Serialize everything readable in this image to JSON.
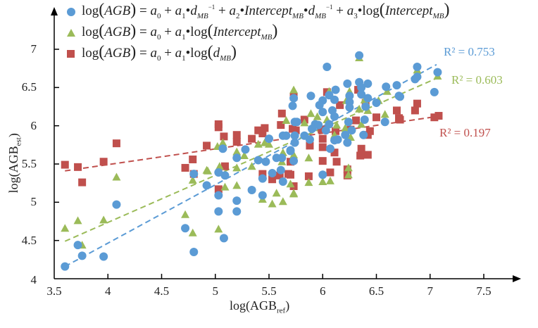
{
  "chart_data": {
    "type": "scatter",
    "xlabel": {
      "main": "log(AGB",
      "sub": "ref",
      "close": ")"
    },
    "ylabel": {
      "main": "log(AGB",
      "sub": "est",
      "close": ")"
    },
    "xlim": [
      3.5,
      7.5
    ],
    "ylim": [
      4,
      7
    ],
    "xticks": [
      "3.5",
      "4",
      "4.5",
      "5",
      "5.5",
      "6",
      "6.5",
      "7",
      "7.5"
    ],
    "yticks": [
      "4",
      "4.5",
      "5",
      "5.5",
      "6",
      "6.5",
      "7"
    ],
    "grid": false,
    "legend_position": "top-left",
    "series": [
      {
        "marker": "circle",
        "color": "#5b9bd5",
        "legend": [
          {
            "t": "log",
            "c": "n"
          },
          {
            "t": "(",
            "c": "big"
          },
          {
            "t": "AGB",
            "c": "i"
          },
          {
            "t": ")",
            "c": "big"
          },
          {
            "t": " = ",
            "c": "n"
          },
          {
            "t": "a",
            "c": "i"
          },
          {
            "t": "0",
            "c": "sub n"
          },
          {
            "t": " + ",
            "c": "n"
          },
          {
            "t": "a",
            "c": "i"
          },
          {
            "t": "1",
            "c": "sub n"
          },
          {
            "t": "•",
            "c": "n"
          },
          {
            "t": "d",
            "c": "i"
          },
          {
            "t": "MB",
            "c": "sub"
          },
          {
            "t": "−1",
            "c": "sup"
          },
          {
            "t": " + ",
            "c": "n"
          },
          {
            "t": "a",
            "c": "i"
          },
          {
            "t": "2",
            "c": "sub n"
          },
          {
            "t": "•",
            "c": "n"
          },
          {
            "t": "Intercept",
            "c": "i"
          },
          {
            "t": "MB",
            "c": "sub"
          },
          {
            "t": "•",
            "c": "n"
          },
          {
            "t": "d",
            "c": "i"
          },
          {
            "t": "MB",
            "c": "sub"
          },
          {
            "t": "−1",
            "c": "sup"
          },
          {
            "t": " + ",
            "c": "n"
          },
          {
            "t": "a",
            "c": "i"
          },
          {
            "t": "3",
            "c": "sub n"
          },
          {
            "t": "•log",
            "c": "n"
          },
          {
            "t": "(",
            "c": "big"
          },
          {
            "t": "Intercept",
            "c": "i"
          },
          {
            "t": "MB",
            "c": "sub"
          },
          {
            "t": ")",
            "c": "big"
          }
        ],
        "r2_label": "R² = 0.753",
        "trendline": [
          [
            3.6,
            4.16
          ],
          [
            7.06,
            6.8
          ]
        ],
        "points": [
          [
            3.6,
            4.16
          ],
          [
            3.72,
            4.44
          ],
          [
            3.76,
            4.3
          ],
          [
            3.96,
            4.29
          ],
          [
            4.08,
            4.97
          ],
          [
            4.72,
            4.66
          ],
          [
            4.8,
            4.35
          ],
          [
            4.8,
            5.37
          ],
          [
            4.92,
            5.22
          ],
          [
            5.07,
            5.7
          ],
          [
            5.28,
            5.69
          ],
          [
            5.2,
            5.58
          ],
          [
            5.4,
            5.55
          ],
          [
            5.47,
            5.53
          ],
          [
            5.5,
            5.83
          ],
          [
            5.03,
            5.39
          ],
          [
            5.09,
            5.35
          ],
          [
            5.03,
            5.09
          ],
          [
            5.2,
            5.02
          ],
          [
            5.03,
            4.88
          ],
          [
            5.2,
            4.88
          ],
          [
            5.34,
            5.16
          ],
          [
            5.44,
            5.09
          ],
          [
            5.44,
            5.31
          ],
          [
            5.53,
            5.38
          ],
          [
            5.61,
            5.42
          ],
          [
            5.63,
            5.27
          ],
          [
            5.08,
            4.53
          ],
          [
            5.57,
            5.58
          ],
          [
            5.62,
            5.58
          ],
          [
            5.7,
            5.68
          ],
          [
            5.73,
            5.54
          ],
          [
            5.63,
            5.87
          ],
          [
            5.66,
            5.87
          ],
          [
            5.74,
            6.05
          ],
          [
            6.34,
            6.92
          ],
          [
            6.04,
            6.77
          ],
          [
            6.23,
            6.55
          ],
          [
            6.34,
            6.57
          ],
          [
            6.42,
            6.55
          ],
          [
            6.59,
            6.51
          ],
          [
            6.69,
            6.53
          ],
          [
            6.36,
            6.5
          ],
          [
            6.12,
            6.47
          ],
          [
            5.89,
            6.39
          ],
          [
            6.06,
            6.4
          ],
          [
            6.11,
            6.34
          ],
          [
            5.73,
            6.36
          ],
          [
            5.72,
            6.26
          ],
          [
            6.0,
            6.33
          ],
          [
            5.97,
            6.27
          ],
          [
            6.25,
            6.39
          ],
          [
            6.25,
            6.31
          ],
          [
            6.25,
            6.24
          ],
          [
            6.36,
            6.41
          ],
          [
            6.42,
            6.36
          ],
          [
            6.5,
            6.3
          ],
          [
            6.71,
            6.39
          ],
          [
            6.4,
            6.25
          ],
          [
            6.0,
            6.18
          ],
          [
            6.09,
            6.2
          ],
          [
            6.11,
            6.12
          ],
          [
            5.76,
            6.05
          ],
          [
            6.39,
            6.08
          ],
          [
            6.58,
            6.05
          ],
          [
            5.93,
            6.02
          ],
          [
            5.96,
            6.01
          ],
          [
            6.24,
            6.05
          ],
          [
            6.06,
            6.02
          ],
          [
            6.0,
            5.36
          ],
          [
            6.07,
            5.7
          ],
          [
            6.11,
            5.81
          ],
          [
            6.14,
            5.82
          ],
          [
            6.23,
            5.78
          ],
          [
            6.21,
            5.88
          ],
          [
            6.27,
            5.94
          ],
          [
            6.38,
            5.88
          ],
          [
            5.74,
            5.87
          ],
          [
            5.83,
            5.87
          ],
          [
            5.88,
            5.82
          ],
          [
            5.7,
            5.67
          ],
          [
            5.74,
            5.78
          ],
          [
            5.9,
            5.96
          ],
          [
            6.03,
            5.94
          ],
          [
            6.88,
            6.77
          ],
          [
            7.07,
            6.7
          ],
          [
            6.88,
            6.64
          ],
          [
            6.86,
            6.61
          ],
          [
            6.72,
            6.38
          ],
          [
            7.04,
            6.44
          ]
        ]
      },
      {
        "marker": "triangle",
        "color": "#9bbb59",
        "legend": [
          {
            "t": "log",
            "c": "n"
          },
          {
            "t": "(",
            "c": "big"
          },
          {
            "t": "AGB",
            "c": "i"
          },
          {
            "t": ")",
            "c": "big"
          },
          {
            "t": " = ",
            "c": "n"
          },
          {
            "t": "a",
            "c": "i"
          },
          {
            "t": "0",
            "c": "sub n"
          },
          {
            "t": " + ",
            "c": "n"
          },
          {
            "t": "a",
            "c": "i"
          },
          {
            "t": "1",
            "c": "sub n"
          },
          {
            "t": "•log",
            "c": "n"
          },
          {
            "t": "(",
            "c": "big"
          },
          {
            "t": "Intercept",
            "c": "i"
          },
          {
            "t": "MB",
            "c": "sub"
          },
          {
            "t": ")",
            "c": "big"
          }
        ],
        "r2_label": "R² = 0.603",
        "trendline": [
          [
            3.6,
            4.49
          ],
          [
            7.06,
            6.62
          ]
        ],
        "points": [
          [
            3.6,
            4.66
          ],
          [
            3.72,
            4.76
          ],
          [
            3.76,
            4.44
          ],
          [
            3.96,
            4.77
          ],
          [
            4.08,
            5.33
          ],
          [
            4.72,
            4.84
          ],
          [
            4.79,
            4.6
          ],
          [
            4.79,
            5.29
          ],
          [
            4.92,
            5.42
          ],
          [
            5.02,
            5.73
          ],
          [
            5.07,
            5.78
          ],
          [
            5.2,
            5.66
          ],
          [
            5.27,
            5.61
          ],
          [
            5.4,
            5.76
          ],
          [
            5.46,
            5.78
          ],
          [
            5.5,
            5.76
          ],
          [
            5.04,
            5.47
          ],
          [
            4.93,
            5.41
          ],
          [
            5.2,
            5.45
          ],
          [
            5.34,
            5.47
          ],
          [
            5.09,
            5.2
          ],
          [
            5.2,
            5.22
          ],
          [
            5.03,
            4.65
          ],
          [
            5.44,
            5.04
          ],
          [
            5.53,
            4.98
          ],
          [
            5.63,
            5.01
          ],
          [
            5.57,
            5.12
          ],
          [
            5.66,
            6.07
          ],
          [
            5.63,
            5.65
          ],
          [
            5.62,
            5.53
          ],
          [
            5.7,
            5.24
          ],
          [
            5.73,
            5.12
          ],
          [
            6.34,
            6.89
          ],
          [
            5.73,
            6.47
          ],
          [
            6.06,
            6.45
          ],
          [
            6.25,
            6.45
          ],
          [
            6.22,
            6.33
          ],
          [
            6.39,
            6.34
          ],
          [
            6.6,
            6.45
          ],
          [
            6.34,
            6.22
          ],
          [
            6.42,
            6.2
          ],
          [
            6.52,
            6.33
          ],
          [
            5.89,
            6.16
          ],
          [
            5.95,
            6.12
          ],
          [
            5.83,
            6.04
          ],
          [
            6.04,
            6.08
          ],
          [
            6.13,
            6.01
          ],
          [
            6.21,
            5.97
          ],
          [
            6.36,
            6.02
          ],
          [
            6.58,
            6.15
          ],
          [
            5.87,
            5.58
          ],
          [
            5.73,
            5.62
          ],
          [
            5.87,
            5.26
          ],
          [
            6.0,
            5.27
          ],
          [
            6.07,
            5.28
          ],
          [
            6.24,
            5.45
          ],
          [
            6.24,
            5.36
          ],
          [
            5.73,
            5.11
          ],
          [
            6.11,
            5.88
          ],
          [
            6.26,
            5.85
          ],
          [
            6.21,
            5.94
          ],
          [
            6.88,
            6.73
          ],
          [
            7.07,
            6.65
          ]
        ]
      },
      {
        "marker": "square",
        "color": "#c0504d",
        "legend": [
          {
            "t": "log",
            "c": "n"
          },
          {
            "t": "(",
            "c": "big"
          },
          {
            "t": "AGB",
            "c": "i"
          },
          {
            "t": ")",
            "c": "big"
          },
          {
            "t": " = ",
            "c": "n"
          },
          {
            "t": "a",
            "c": "i"
          },
          {
            "t": "0",
            "c": "sub n"
          },
          {
            "t": " + ",
            "c": "n"
          },
          {
            "t": "a",
            "c": "i"
          },
          {
            "t": "1",
            "c": "sub n"
          },
          {
            "t": "•log",
            "c": "n"
          },
          {
            "t": "(",
            "c": "big"
          },
          {
            "t": "d",
            "c": "i"
          },
          {
            "t": "MB",
            "c": "sub"
          },
          {
            "t": ")",
            "c": "big"
          }
        ],
        "r2_label": "R² = 0.197",
        "trendline": [
          [
            3.6,
            5.41
          ],
          [
            7.06,
            6.12
          ]
        ],
        "points": [
          [
            3.6,
            5.49
          ],
          [
            3.72,
            5.46
          ],
          [
            3.76,
            5.26
          ],
          [
            3.96,
            5.53
          ],
          [
            4.08,
            5.77
          ],
          [
            4.72,
            5.45
          ],
          [
            4.79,
            5.56
          ],
          [
            4.8,
            5.37
          ],
          [
            4.92,
            5.74
          ],
          [
            5.03,
            6.02
          ],
          [
            5.03,
            5.98
          ],
          [
            5.08,
            5.86
          ],
          [
            5.09,
            5.47
          ],
          [
            5.03,
            5.17
          ],
          [
            5.2,
            5.88
          ],
          [
            5.2,
            5.79
          ],
          [
            5.34,
            5.83
          ],
          [
            5.4,
            5.94
          ],
          [
            5.46,
            5.97
          ],
          [
            5.44,
            5.9
          ],
          [
            5.62,
            6.16
          ],
          [
            5.61,
            6.01
          ],
          [
            5.44,
            5.37
          ],
          [
            5.53,
            5.3
          ],
          [
            5.6,
            5.35
          ],
          [
            5.68,
            5.37
          ],
          [
            5.73,
            5.21
          ],
          [
            5.73,
            6.38
          ],
          [
            6.04,
            6.44
          ],
          [
            6.33,
            6.47
          ],
          [
            6.16,
            6.27
          ],
          [
            6.4,
            6.3
          ],
          [
            6.69,
            6.2
          ],
          [
            6.71,
            6.1
          ],
          [
            6.5,
            6.11
          ],
          [
            6.31,
            6.07
          ],
          [
            5.83,
            6.08
          ],
          [
            5.72,
            5.96
          ],
          [
            5.99,
            5.95
          ],
          [
            6.12,
            5.93
          ],
          [
            6.26,
            5.95
          ],
          [
            6.44,
            5.93
          ],
          [
            5.75,
            5.94
          ],
          [
            6.0,
            5.83
          ],
          [
            5.88,
            5.74
          ],
          [
            6.0,
            5.72
          ],
          [
            6.11,
            5.65
          ],
          [
            6.36,
            5.7
          ],
          [
            6.42,
            5.62
          ],
          [
            6.35,
            5.61
          ],
          [
            6.0,
            5.54
          ],
          [
            6.13,
            5.53
          ],
          [
            5.7,
            5.36
          ],
          [
            5.87,
            5.34
          ],
          [
            6.07,
            5.39
          ],
          [
            6.23,
            5.43
          ],
          [
            6.23,
            5.35
          ],
          [
            5.7,
            5.53
          ],
          [
            6.42,
            5.88
          ],
          [
            6.72,
            6.08
          ],
          [
            6.88,
            6.29
          ],
          [
            6.86,
            6.2
          ],
          [
            7.04,
            6.11
          ],
          [
            7.08,
            6.13
          ]
        ]
      }
    ]
  }
}
